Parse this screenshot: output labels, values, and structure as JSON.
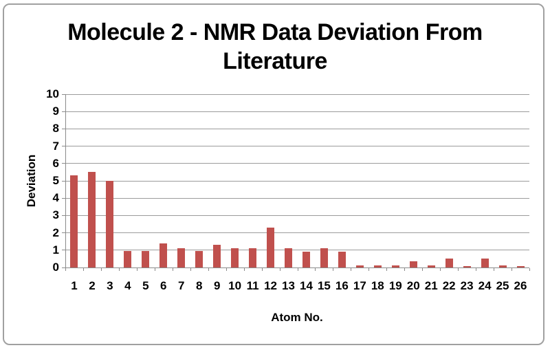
{
  "frame": {
    "border_color": "#a0a0a0",
    "background": "#ffffff"
  },
  "chart_data": {
    "type": "bar",
    "title": "Molecule 2 - NMR Data Deviation From Literature",
    "title_lines": [
      "Molecule 2 - NMR Data Deviation From",
      "Literature"
    ],
    "xlabel": "Atom No.",
    "ylabel": "Deviation",
    "categories": [
      "1",
      "2",
      "3",
      "4",
      "5",
      "6",
      "7",
      "8",
      "9",
      "10",
      "11",
      "12",
      "13",
      "14",
      "15",
      "16",
      "17",
      "18",
      "19",
      "20",
      "21",
      "22",
      "23",
      "24",
      "25",
      "26"
    ],
    "values": [
      5.3,
      5.5,
      5.0,
      0.95,
      0.95,
      1.4,
      1.1,
      0.95,
      1.3,
      1.1,
      1.1,
      2.3,
      1.1,
      0.9,
      1.1,
      0.9,
      0.1,
      0.1,
      0.1,
      0.35,
      0.12,
      0.5,
      0.07,
      0.5,
      0.1,
      0.08
    ],
    "ylim": [
      0,
      10
    ],
    "yticks": [
      0,
      1,
      2,
      3,
      4,
      5,
      6,
      7,
      8,
      9,
      10
    ],
    "grid": "horizontal",
    "legend": "none",
    "bar_color": "#C0504D",
    "gridline_color": "#9b9b9b",
    "axis_color": "#8a8a8a",
    "text_color": "#000000"
  }
}
